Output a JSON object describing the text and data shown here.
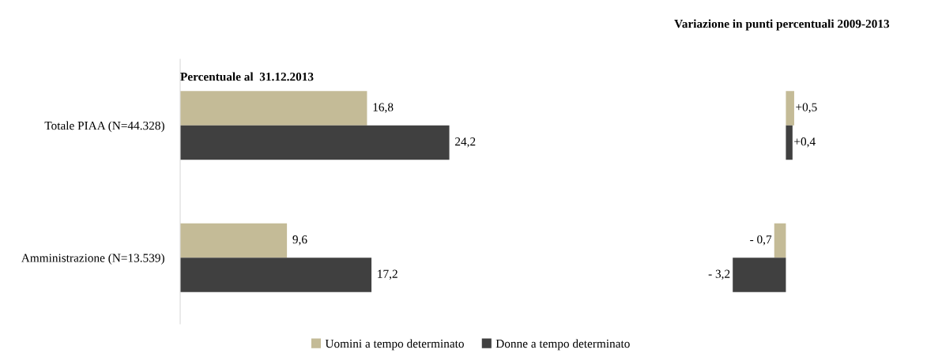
{
  "chart_data": [
    {
      "type": "bar",
      "orientation": "horizontal",
      "title": "Percentuale al  31.12.2013",
      "categories": [
        "Totale PIAA (N=44.328)",
        "Amministrazione (N=13.539)"
      ],
      "legend": "bottom",
      "series": [
        {
          "name": "Uomini a tempo determinato",
          "color": "#c4bb97",
          "values": [
            16.8,
            9.6
          ],
          "value_labels": [
            "16,8",
            "9,6"
          ]
        },
        {
          "name": "Donne a tempo determinato",
          "color": "#404040",
          "values": [
            24.2,
            17.2
          ],
          "value_labels": [
            "24,2",
            "17,2"
          ]
        }
      ]
    },
    {
      "type": "bar",
      "orientation": "horizontal",
      "title": "Variazione in punti percentuali 2009-2013",
      "categories": [
        null,
        null
      ],
      "series": [
        {
          "color": "#c4bb97",
          "values": [
            0.5,
            -0.7
          ],
          "value_labels": [
            "+0,5",
            "- 0,7"
          ]
        },
        {
          "color": "#404040",
          "values": [
            0.4,
            -3.2
          ],
          "value_labels": [
            "+0,4",
            "- 3,2"
          ]
        }
      ]
    }
  ]
}
